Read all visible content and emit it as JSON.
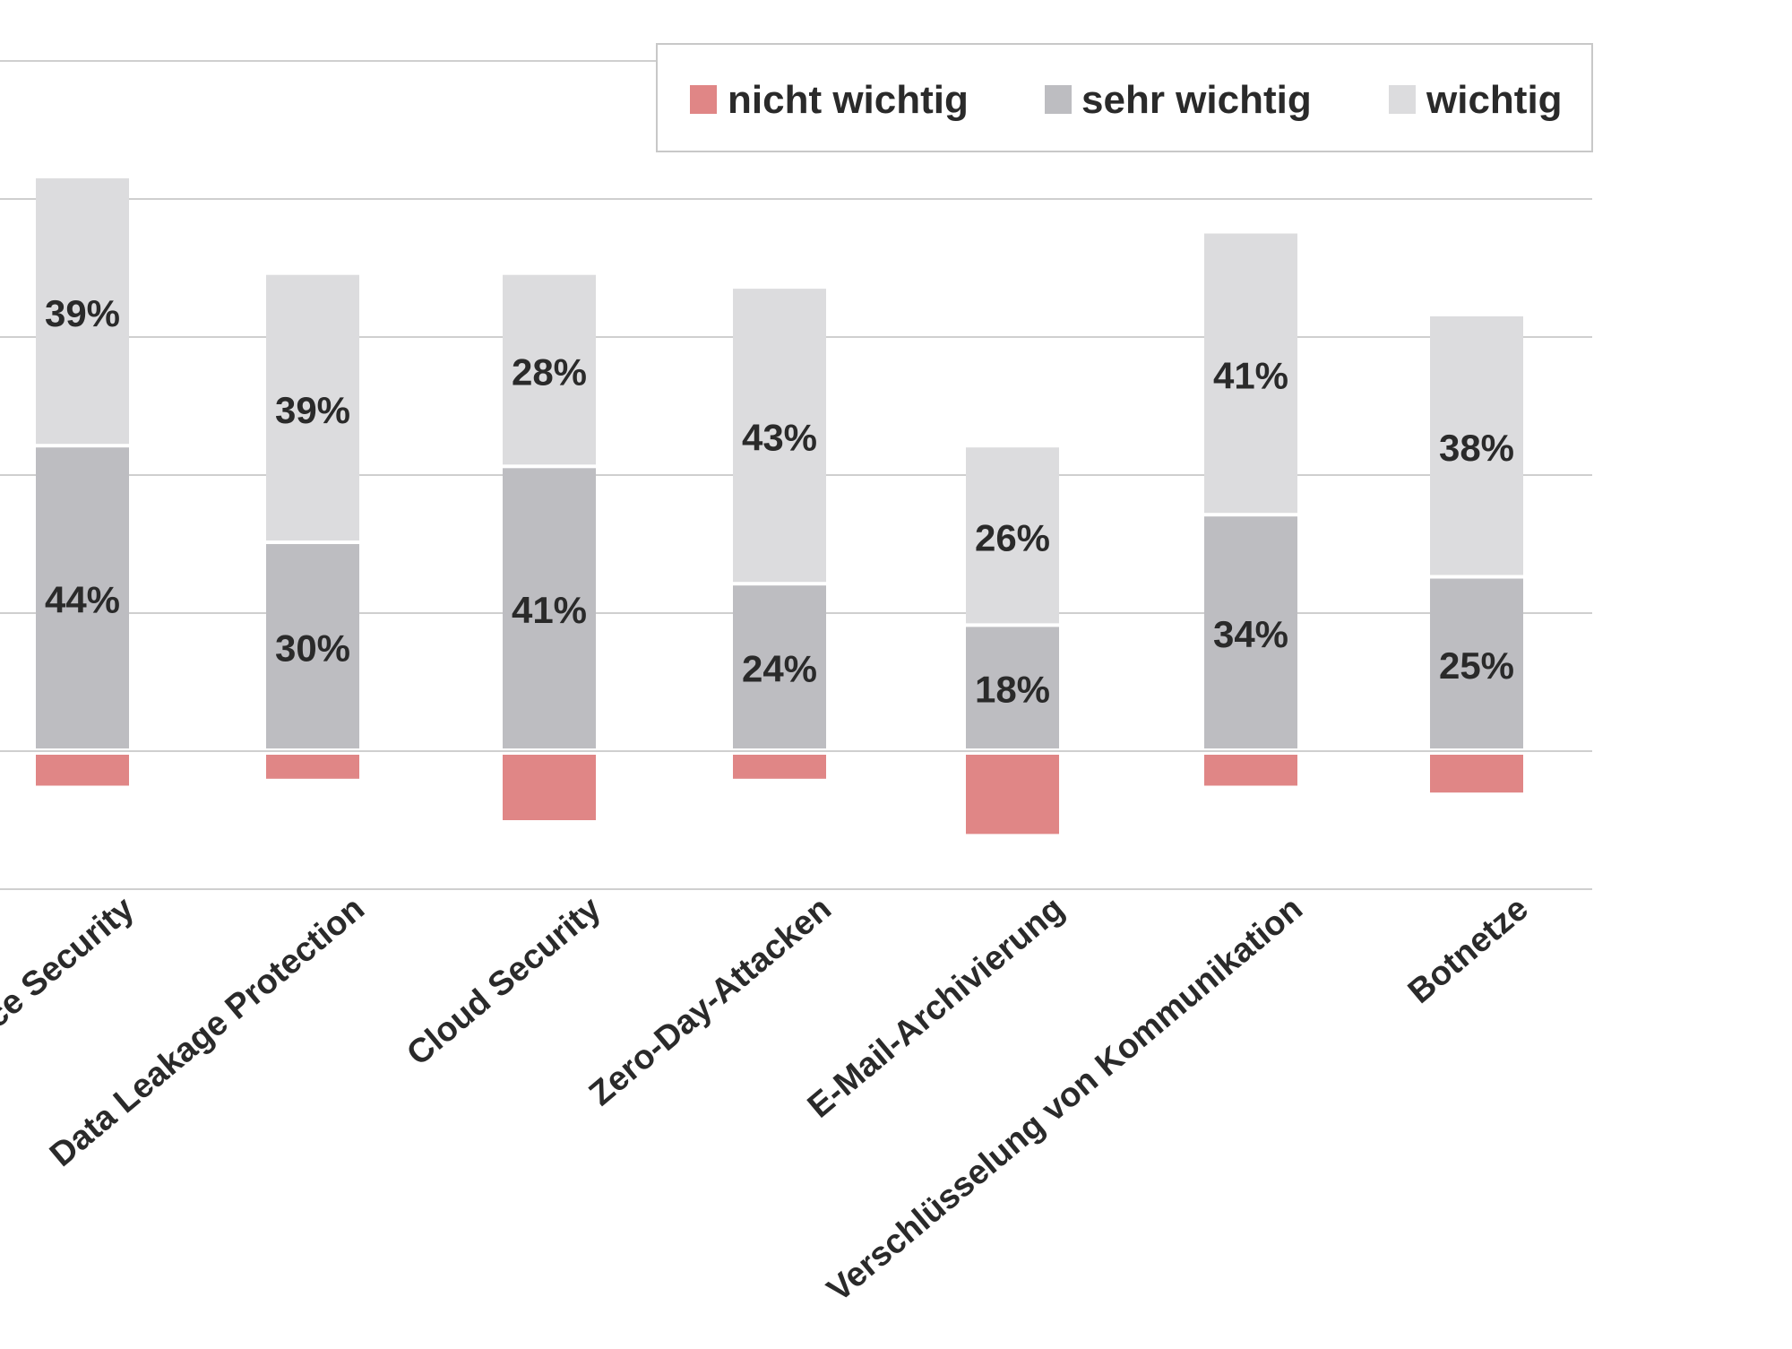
{
  "chart_data": {
    "type": "bar",
    "stacked": true,
    "categories": [
      "Device Security",
      "Data Leakage Protection",
      "Cloud Security",
      "Zero-Day-Attacken",
      "E-Mail-Archivierung",
      "Verschlüsselung von Kommunikation",
      "Botnetze"
    ],
    "series": [
      {
        "name": "nicht wichtig",
        "color": "#e08686",
        "values": [
          -5,
          -4,
          -10,
          -4,
          -12,
          -5,
          -6
        ],
        "labels": [
          "",
          "",
          "",
          "",
          "",
          "",
          ""
        ]
      },
      {
        "name": "sehr wichtig",
        "color": "#bdbdc1",
        "values": [
          44,
          30,
          41,
          24,
          18,
          34,
          25
        ],
        "labels": [
          "44%",
          "30%",
          "41%",
          "24%",
          "18%",
          "34%",
          "25%"
        ]
      },
      {
        "name": "wichtig",
        "color": "#dcdcde",
        "values": [
          39,
          39,
          28,
          43,
          26,
          41,
          38
        ],
        "labels": [
          "39%",
          "39%",
          "28%",
          "43%",
          "26%",
          "41%",
          "38%"
        ]
      }
    ],
    "ylim": [
      -20,
      100
    ],
    "grid": true,
    "legend": "top-right",
    "title": "",
    "xlabel": "",
    "ylabel": ""
  }
}
